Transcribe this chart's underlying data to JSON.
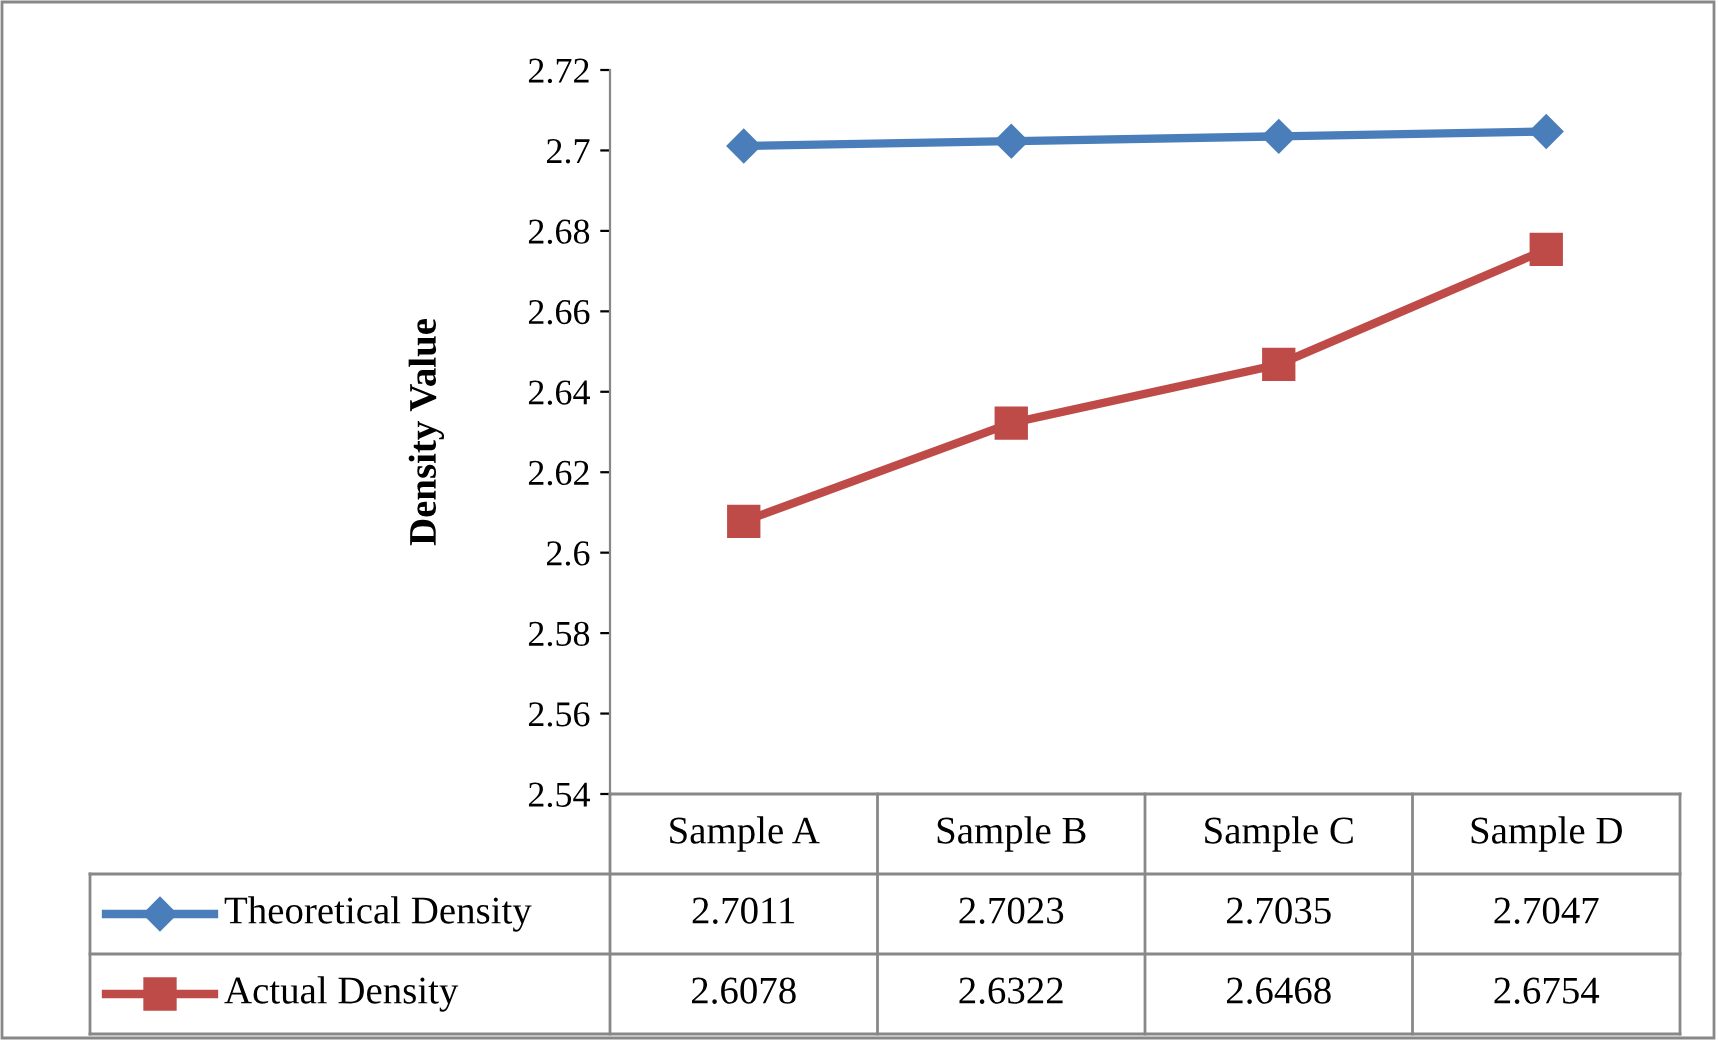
{
  "chart_data": {
    "type": "line",
    "ylabel": "Density Value",
    "categories": [
      "Sample A",
      "Sample B",
      "Sample C",
      "Sample D"
    ],
    "series": [
      {
        "name": "Theoretical Density",
        "color": "#4a7ebb",
        "marker": "diamond",
        "values": [
          2.7011,
          2.7023,
          2.7035,
          2.7047
        ]
      },
      {
        "name": "Actual Density",
        "color": "#be4b48",
        "marker": "square",
        "values": [
          2.6078,
          2.6322,
          2.6468,
          2.6754
        ]
      }
    ],
    "ylim": [
      2.54,
      2.72
    ],
    "yticks": [
      2.54,
      2.56,
      2.58,
      2.6,
      2.62,
      2.64,
      2.66,
      2.68,
      2.7,
      2.72
    ],
    "grid": false,
    "legend": "bottom",
    "data_labels": true,
    "line_style": "solid"
  }
}
